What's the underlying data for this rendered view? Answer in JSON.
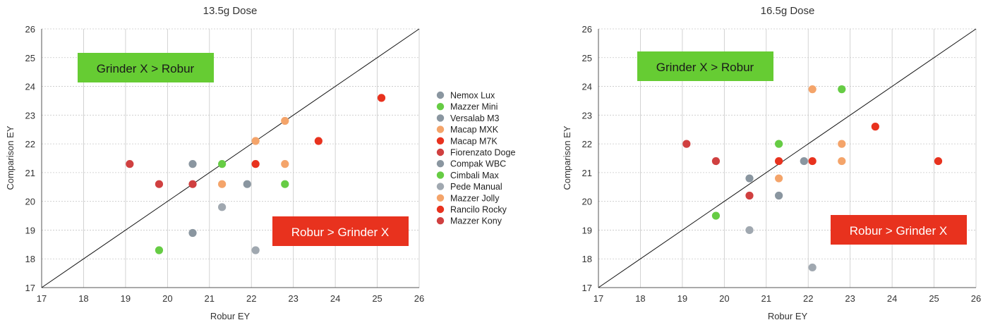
{
  "chart_data": [
    {
      "type": "scatter",
      "title": "13.5g Dose",
      "xlabel": "Robur EY",
      "ylabel": "Comparison EY",
      "xlim": [
        17,
        26
      ],
      "ylim": [
        17,
        26
      ],
      "xticks": [
        17,
        18,
        19,
        20,
        21,
        22,
        23,
        24,
        25,
        26
      ],
      "yticks": [
        17,
        18,
        19,
        20,
        21,
        22,
        23,
        24,
        25,
        26
      ],
      "grid": true,
      "reference_line": "y = x",
      "annotations": [
        {
          "text": "Grinder X > Robur",
          "color": "#66cc33"
        },
        {
          "text": "Robur > Grinder X",
          "color": "#e8321e"
        }
      ],
      "legend_position": "right",
      "series": [
        {
          "name": "Nemox Lux",
          "color": "#8a96a0",
          "points": [
            [
              20.6,
              21.3
            ]
          ]
        },
        {
          "name": "Mazzer Mini",
          "color": "#66cc44",
          "points": [
            [
              19.8,
              18.3
            ]
          ]
        },
        {
          "name": "Versalab M3",
          "color": "#8a96a0",
          "points": [
            [
              20.6,
              18.9
            ]
          ]
        },
        {
          "name": "Macap MXK",
          "color": "#f4a46a",
          "points": [
            [
              22.1,
              22.1
            ]
          ]
        },
        {
          "name": "Macap M7K",
          "color": "#e8321e",
          "points": [
            [
              22.1,
              21.3
            ]
          ]
        },
        {
          "name": "Fiorenzato Doge",
          "color": "#d04040",
          "points": [
            [
              19.1,
              21.3
            ]
          ]
        },
        {
          "name": "Compak WBC",
          "color": "#8a96a0",
          "points": [
            [
              21.9,
              20.6
            ]
          ]
        },
        {
          "name": "Cimbali Max",
          "color": "#66cc44",
          "points": [
            [
              21.3,
              21.3
            ],
            [
              22.8,
              20.6
            ]
          ]
        },
        {
          "name": "Pede Manual",
          "color": "#a0a8b0",
          "points": [
            [
              21.3,
              19.8
            ],
            [
              22.1,
              18.3
            ]
          ]
        },
        {
          "name": "Mazzer Jolly",
          "color": "#f4a46a",
          "points": [
            [
              21.3,
              20.6
            ],
            [
              22.8,
              22.8
            ],
            [
              22.8,
              21.3
            ]
          ]
        },
        {
          "name": "Rancilo Rocky",
          "color": "#e8321e",
          "points": [
            [
              23.6,
              22.1
            ],
            [
              25.1,
              23.6
            ]
          ]
        },
        {
          "name": "Mazzer Kony",
          "color": "#d04040",
          "points": [
            [
              19.8,
              20.6
            ],
            [
              20.6,
              20.6
            ]
          ]
        }
      ]
    },
    {
      "type": "scatter",
      "title": "16.5g Dose",
      "xlabel": "Robur EY",
      "ylabel": "Comparison EY",
      "xlim": [
        17,
        26
      ],
      "ylim": [
        17,
        26
      ],
      "xticks": [
        17,
        18,
        19,
        20,
        21,
        22,
        23,
        24,
        25,
        26
      ],
      "yticks": [
        17,
        18,
        19,
        20,
        21,
        22,
        23,
        24,
        25,
        26
      ],
      "grid": true,
      "reference_line": "y = x",
      "annotations": [
        {
          "text": "Grinder X > Robur",
          "color": "#66cc33"
        },
        {
          "text": "Robur > Grinder X",
          "color": "#e8321e"
        }
      ],
      "series": [
        {
          "name": "Nemox Lux",
          "color": "#8a96a0",
          "points": [
            [
              20.6,
              20.8
            ]
          ]
        },
        {
          "name": "Mazzer Mini",
          "color": "#66cc44",
          "points": [
            [
              19.8,
              19.5
            ]
          ]
        },
        {
          "name": "Versalab M3",
          "color": "#8a96a0",
          "points": [
            [
              21.3,
              20.2
            ]
          ]
        },
        {
          "name": "Macap MXK",
          "color": "#f4a46a",
          "points": [
            [
              22.1,
              23.9
            ]
          ]
        },
        {
          "name": "Macap M7K",
          "color": "#e8321e",
          "points": [
            [
              21.3,
              21.4
            ]
          ]
        },
        {
          "name": "Fiorenzato Doge",
          "color": "#d04040",
          "points": [
            [
              19.1,
              22.0
            ]
          ]
        },
        {
          "name": "Compak WBC",
          "color": "#8a96a0",
          "points": [
            [
              21.9,
              21.4
            ]
          ]
        },
        {
          "name": "Cimbali Max",
          "color": "#66cc44",
          "points": [
            [
              21.3,
              22.0
            ],
            [
              22.8,
              23.9
            ]
          ]
        },
        {
          "name": "Pede Manual",
          "color": "#a0a8b0",
          "points": [
            [
              20.6,
              19.0
            ],
            [
              22.1,
              17.7
            ]
          ]
        },
        {
          "name": "Mazzer Jolly",
          "color": "#f4a46a",
          "points": [
            [
              21.3,
              20.8
            ],
            [
              22.8,
              22.0
            ],
            [
              22.8,
              21.4
            ]
          ]
        },
        {
          "name": "Rancilo Rocky",
          "color": "#e8321e",
          "points": [
            [
              22.1,
              21.4
            ],
            [
              23.6,
              22.6
            ],
            [
              25.1,
              21.4
            ]
          ]
        },
        {
          "name": "Mazzer Kony",
          "color": "#d04040",
          "points": [
            [
              19.8,
              21.4
            ],
            [
              20.6,
              20.2
            ]
          ]
        }
      ]
    }
  ]
}
